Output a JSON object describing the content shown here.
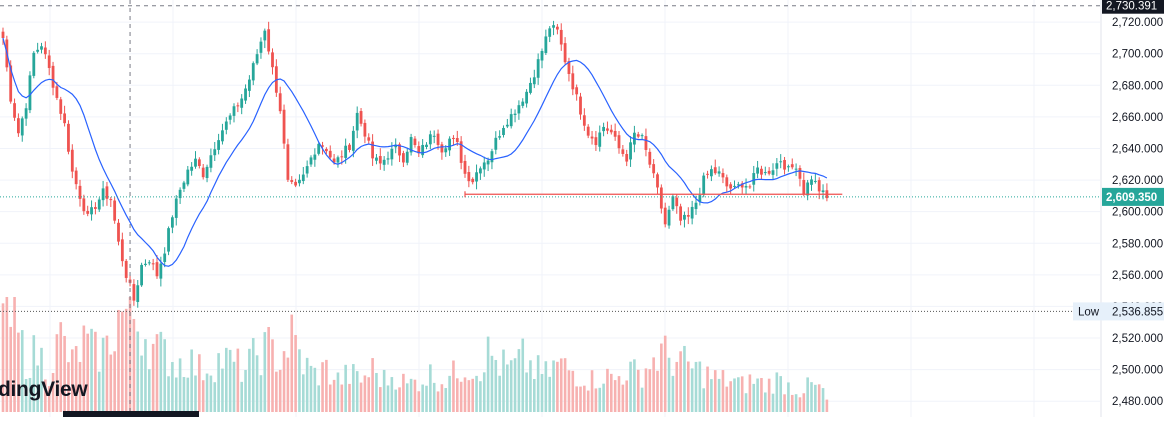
{
  "app": {
    "watermark": "dingView"
  },
  "colors": {
    "up": "#26a69a",
    "down": "#ef5350",
    "volume_up": "#a6dbd6",
    "volume_down": "#f7b1b0",
    "ma": "#2962ff",
    "last_price_bg": "#26a69a",
    "crosshair_label_bg": "#131722",
    "support_line": "#ef5350",
    "grid": "#f0f3fa",
    "axis_text": "#131722"
  },
  "chart_data": {
    "type": "candlestick",
    "title": "",
    "ylim": [
      2470,
      2734
    ],
    "y_ticks": [
      "2,720.000",
      "2,700.000",
      "2,680.000",
      "2,660.000",
      "2,640.000",
      "2,620.000",
      "2,600.000",
      "2,580.000",
      "2,560.000",
      "2,540.000",
      "2,520.000",
      "2,500.000",
      "2,480.000"
    ],
    "y_tick_values": [
      2720,
      2700,
      2680,
      2660,
      2640,
      2620,
      2600,
      2580,
      2560,
      2540,
      2520,
      2500,
      2480
    ],
    "last_price": {
      "value": 2609.35,
      "label": "2,609.350"
    },
    "crosshair_price": {
      "value": 2730.391,
      "label": "2,730.391"
    },
    "low_marker": {
      "name": "Low",
      "value": 2536.855,
      "label": "2,536.855"
    },
    "support_line": {
      "value": 2611,
      "from_index": 120,
      "to_index": 218
    },
    "crosshair_index": 33,
    "ma_period": 14,
    "close_anchors": [
      [
        0,
        2710
      ],
      [
        2,
        2672
      ],
      [
        4,
        2650
      ],
      [
        6,
        2668
      ],
      [
        8,
        2700
      ],
      [
        10,
        2706
      ],
      [
        12,
        2690
      ],
      [
        14,
        2672
      ],
      [
        16,
        2655
      ],
      [
        18,
        2625
      ],
      [
        20,
        2610
      ],
      [
        22,
        2596
      ],
      [
        24,
        2604
      ],
      [
        26,
        2612
      ],
      [
        28,
        2608
      ],
      [
        30,
        2580
      ],
      [
        32,
        2560
      ],
      [
        34,
        2544
      ],
      [
        36,
        2566
      ],
      [
        38,
        2570
      ],
      [
        40,
        2560
      ],
      [
        42,
        2576
      ],
      [
        44,
        2598
      ],
      [
        46,
        2614
      ],
      [
        48,
        2626
      ],
      [
        50,
        2632
      ],
      [
        52,
        2624
      ],
      [
        54,
        2636
      ],
      [
        56,
        2648
      ],
      [
        58,
        2656
      ],
      [
        60,
        2664
      ],
      [
        62,
        2672
      ],
      [
        64,
        2684
      ],
      [
        66,
        2700
      ],
      [
        68,
        2716
      ],
      [
        70,
        2690
      ],
      [
        72,
        2665
      ],
      [
        74,
        2618
      ],
      [
        76,
        2614
      ],
      [
        78,
        2622
      ],
      [
        80,
        2634
      ],
      [
        82,
        2644
      ],
      [
        84,
        2640
      ],
      [
        86,
        2630
      ],
      [
        88,
        2636
      ],
      [
        90,
        2642
      ],
      [
        92,
        2662
      ],
      [
        94,
        2650
      ],
      [
        96,
        2634
      ],
      [
        98,
        2630
      ],
      [
        100,
        2636
      ],
      [
        102,
        2640
      ],
      [
        104,
        2634
      ],
      [
        106,
        2646
      ],
      [
        108,
        2636
      ],
      [
        110,
        2644
      ],
      [
        112,
        2650
      ],
      [
        114,
        2640
      ],
      [
        116,
        2646
      ],
      [
        118,
        2642
      ],
      [
        120,
        2624
      ],
      [
        122,
        2620
      ],
      [
        124,
        2630
      ],
      [
        126,
        2634
      ],
      [
        128,
        2645
      ],
      [
        130,
        2655
      ],
      [
        132,
        2661
      ],
      [
        134,
        2668
      ],
      [
        136,
        2676
      ],
      [
        138,
        2688
      ],
      [
        140,
        2702
      ],
      [
        142,
        2717
      ],
      [
        144,
        2714
      ],
      [
        146,
        2696
      ],
      [
        148,
        2680
      ],
      [
        150,
        2664
      ],
      [
        152,
        2650
      ],
      [
        154,
        2645
      ],
      [
        156,
        2654
      ],
      [
        158,
        2650
      ],
      [
        160,
        2640
      ],
      [
        162,
        2634
      ],
      [
        164,
        2649
      ],
      [
        166,
        2646
      ],
      [
        168,
        2630
      ],
      [
        170,
        2613
      ],
      [
        172,
        2592
      ],
      [
        174,
        2608
      ],
      [
        176,
        2594
      ],
      [
        178,
        2596
      ],
      [
        180,
        2606
      ],
      [
        182,
        2620
      ],
      [
        184,
        2626
      ],
      [
        186,
        2624
      ],
      [
        188,
        2616
      ],
      [
        190,
        2614
      ],
      [
        192,
        2618
      ],
      [
        194,
        2616
      ],
      [
        196,
        2627
      ],
      [
        198,
        2624
      ],
      [
        200,
        2628
      ],
      [
        202,
        2633
      ],
      [
        204,
        2626
      ],
      [
        206,
        2630
      ],
      [
        208,
        2613
      ],
      [
        210,
        2622
      ],
      [
        212,
        2614
      ],
      [
        214,
        2608
      ]
    ],
    "volume_anchors": [
      [
        0,
        0.95
      ],
      [
        3,
        0.8
      ],
      [
        6,
        0.5
      ],
      [
        9,
        0.55
      ],
      [
        12,
        0.4
      ],
      [
        15,
        0.7
      ],
      [
        18,
        0.45
      ],
      [
        21,
        0.65
      ],
      [
        24,
        0.55
      ],
      [
        27,
        0.6
      ],
      [
        30,
        0.9
      ],
      [
        33,
        0.95
      ],
      [
        36,
        0.8
      ],
      [
        39,
        0.6
      ],
      [
        42,
        0.55
      ],
      [
        45,
        0.45
      ],
      [
        48,
        0.5
      ],
      [
        51,
        0.4
      ],
      [
        54,
        0.45
      ],
      [
        57,
        0.5
      ],
      [
        60,
        0.45
      ],
      [
        63,
        0.4
      ],
      [
        66,
        0.55
      ],
      [
        69,
        0.6
      ],
      [
        72,
        0.5
      ],
      [
        75,
        0.7
      ],
      [
        78,
        0.45
      ],
      [
        81,
        0.35
      ],
      [
        84,
        0.4
      ],
      [
        87,
        0.3
      ],
      [
        90,
        0.35
      ],
      [
        93,
        0.3
      ],
      [
        96,
        0.4
      ],
      [
        99,
        0.3
      ],
      [
        102,
        0.35
      ],
      [
        105,
        0.25
      ],
      [
        108,
        0.3
      ],
      [
        111,
        0.35
      ],
      [
        114,
        0.3
      ],
      [
        117,
        0.35
      ],
      [
        120,
        0.45
      ],
      [
        123,
        0.4
      ],
      [
        126,
        0.55
      ],
      [
        129,
        0.45
      ],
      [
        132,
        0.4
      ],
      [
        135,
        0.5
      ],
      [
        138,
        0.4
      ],
      [
        141,
        0.35
      ],
      [
        144,
        0.45
      ],
      [
        147,
        0.4
      ],
      [
        150,
        0.35
      ],
      [
        153,
        0.3
      ],
      [
        156,
        0.35
      ],
      [
        159,
        0.3
      ],
      [
        162,
        0.4
      ],
      [
        165,
        0.35
      ],
      [
        168,
        0.45
      ],
      [
        171,
        0.55
      ],
      [
        174,
        0.5
      ],
      [
        177,
        0.45
      ],
      [
        180,
        0.4
      ],
      [
        183,
        0.35
      ],
      [
        186,
        0.3
      ],
      [
        189,
        0.3
      ],
      [
        192,
        0.25
      ],
      [
        195,
        0.3
      ],
      [
        198,
        0.25
      ],
      [
        201,
        0.3
      ],
      [
        204,
        0.25
      ],
      [
        207,
        0.2
      ],
      [
        210,
        0.25
      ],
      [
        213,
        0.2
      ],
      [
        215,
        0.02
      ]
    ]
  }
}
